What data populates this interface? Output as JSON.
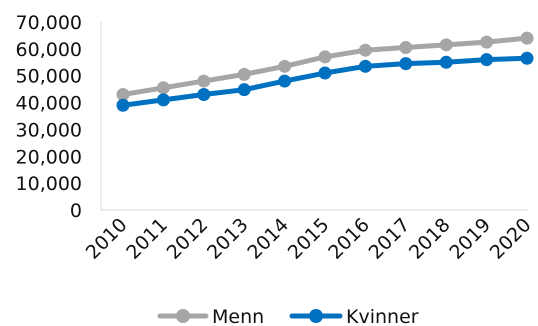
{
  "chart_data": {
    "type": "line",
    "title": "",
    "xlabel": "",
    "ylabel": "",
    "categories": [
      "2010",
      "2011",
      "2012",
      "2013",
      "2014",
      "2015",
      "2016",
      "2017",
      "2018",
      "2019",
      "2020"
    ],
    "ylim": [
      0,
      70000
    ],
    "y_ticks": [
      0,
      10000,
      20000,
      30000,
      40000,
      50000,
      60000,
      70000
    ],
    "y_tick_labels": [
      "0",
      "10,000",
      "20,000",
      "30,000",
      "40,000",
      "50,000",
      "60,000",
      "70,000"
    ],
    "grid": false,
    "legend_position": "bottom",
    "series": [
      {
        "name": "Menn",
        "color": "#a6a6a6",
        "values": [
          43000,
          45500,
          48000,
          50500,
          53500,
          57000,
          59500,
          60500,
          61500,
          62500,
          64000
        ]
      },
      {
        "name": "Kvinner",
        "color": "#0070c0",
        "values": [
          39000,
          41000,
          43000,
          44800,
          48000,
          51000,
          53500,
          54500,
          55000,
          56000,
          56500
        ]
      }
    ]
  }
}
